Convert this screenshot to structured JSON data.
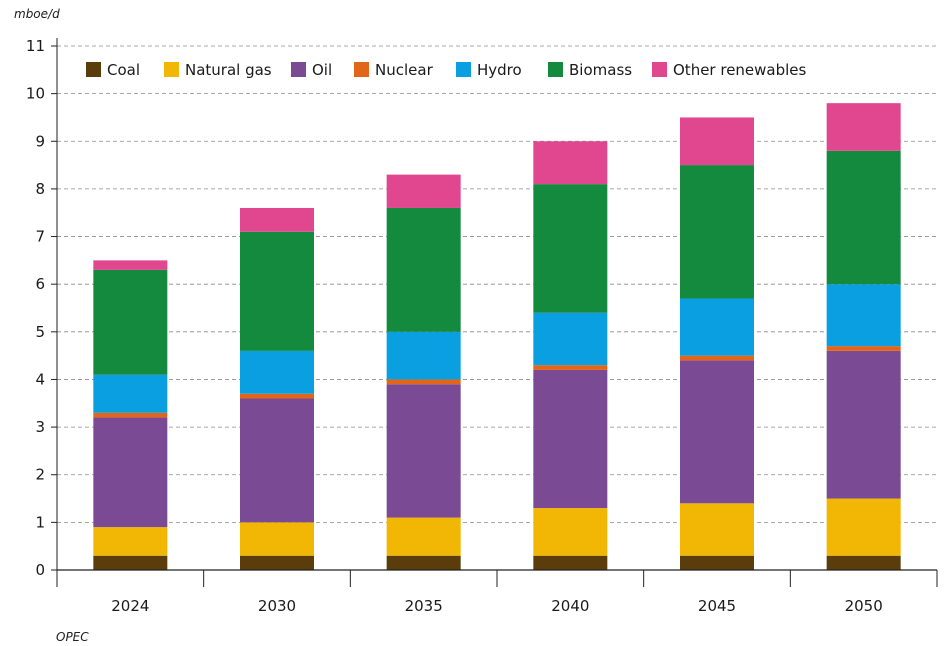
{
  "chart_data": {
    "type": "bar",
    "stacked": true,
    "unit_label": "mboe/d",
    "categories": [
      "2024",
      "2030",
      "2035",
      "2040",
      "2045",
      "2050"
    ],
    "ylim": [
      0,
      11
    ],
    "yticks": [
      0,
      1,
      2,
      3,
      4,
      5,
      6,
      7,
      8,
      9,
      10,
      11
    ],
    "grid": "horizontal dashed",
    "legend_position": "top-left",
    "series": [
      {
        "name": "Coal",
        "color": "#5a3d0a",
        "values": [
          0.3,
          0.3,
          0.3,
          0.3,
          0.3,
          0.3
        ]
      },
      {
        "name": "Natural gas",
        "color": "#f2b705",
        "values": [
          0.6,
          0.7,
          0.8,
          1.0,
          1.1,
          1.2
        ]
      },
      {
        "name": "Oil",
        "color": "#7a4b94",
        "values": [
          2.3,
          2.6,
          2.8,
          2.9,
          3.0,
          3.1
        ]
      },
      {
        "name": "Nuclear",
        "color": "#e2661a",
        "values": [
          0.1,
          0.1,
          0.1,
          0.1,
          0.1,
          0.1
        ]
      },
      {
        "name": "Hydro",
        "color": "#0a9fe0",
        "values": [
          0.8,
          0.9,
          1.0,
          1.1,
          1.2,
          1.3
        ]
      },
      {
        "name": "Biomass",
        "color": "#138a3e",
        "values": [
          2.2,
          2.5,
          2.6,
          2.7,
          2.8,
          2.8
        ]
      },
      {
        "name": "Other renewables",
        "color": "#e0478f",
        "values": [
          0.2,
          0.5,
          0.7,
          0.9,
          1.0,
          1.0
        ]
      }
    ]
  },
  "source_text": "OPEC"
}
